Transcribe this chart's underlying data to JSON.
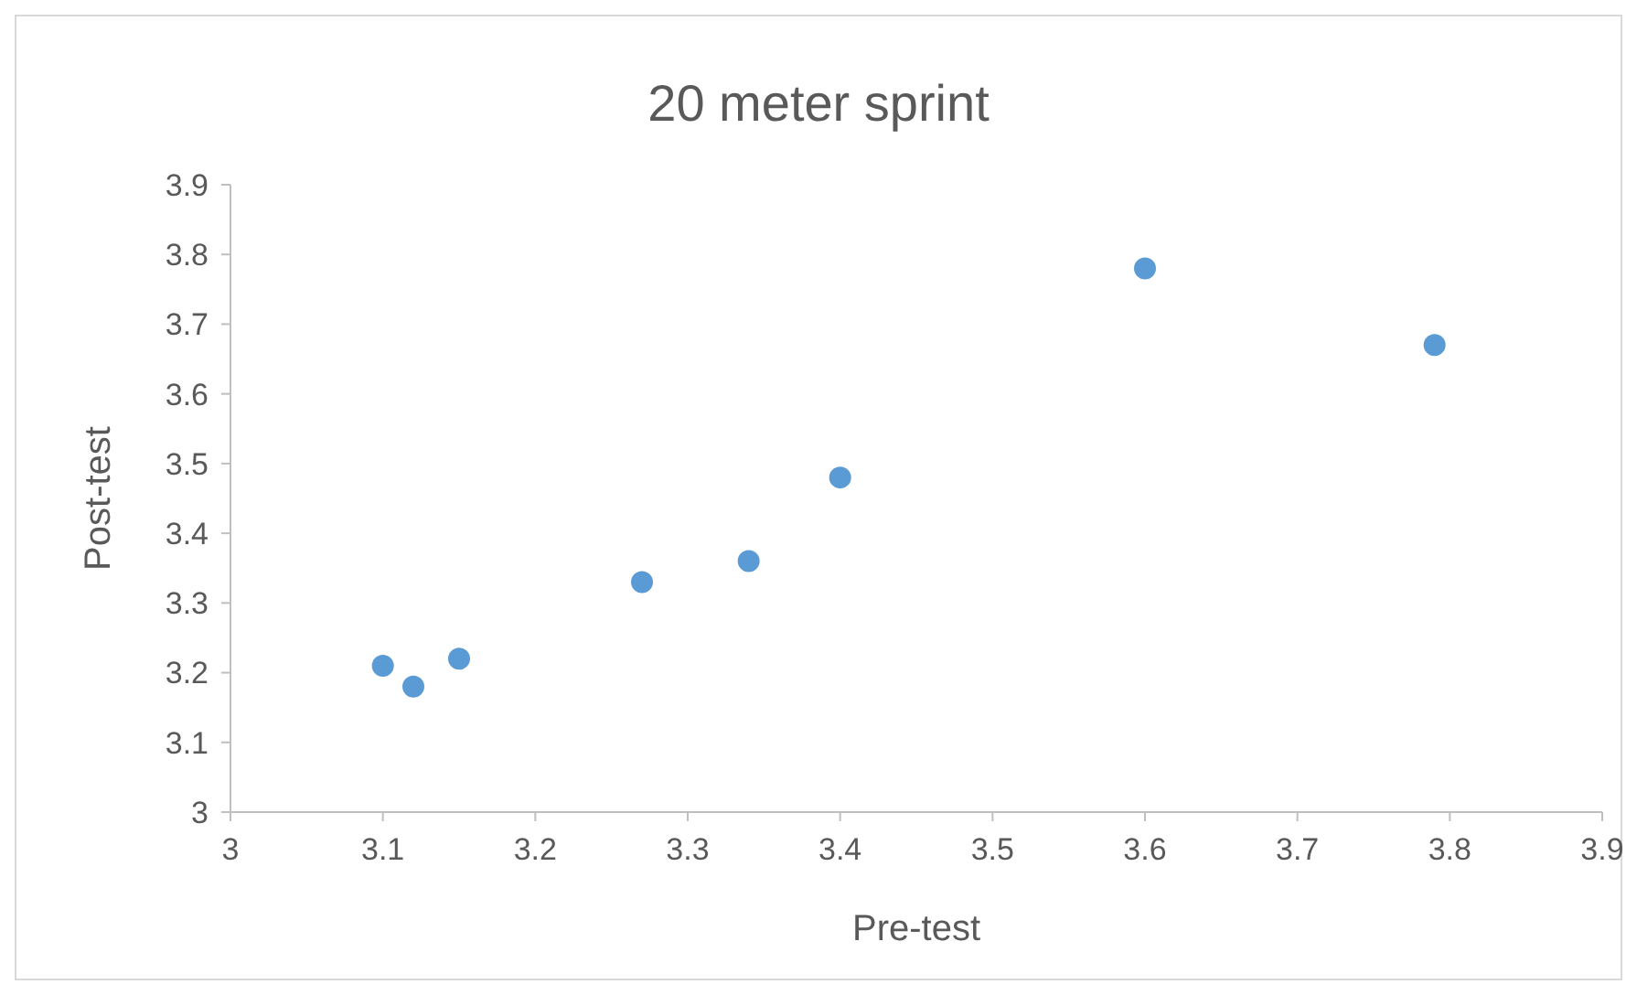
{
  "chart_data": {
    "type": "scatter",
    "title": "20 meter sprint",
    "xlabel": "Pre-test",
    "ylabel": "Post-test",
    "x": [
      3.1,
      3.12,
      3.15,
      3.27,
      3.34,
      3.4,
      3.6,
      3.79
    ],
    "series": [
      {
        "color": "#5b9bd5",
        "values": [
          3.21,
          3.18,
          3.22,
          3.33,
          3.36,
          3.48,
          3.78,
          3.67
        ]
      }
    ],
    "xlim": [
      3,
      3.9
    ],
    "xticks": [
      3,
      3.1,
      3.2,
      3.3,
      3.4,
      3.5,
      3.6,
      3.7,
      3.8,
      3.9
    ],
    "ylim": [
      3,
      3.9
    ],
    "yticks": [
      3,
      3.1,
      3.2,
      3.3,
      3.4,
      3.5,
      3.6,
      3.7,
      3.8,
      3.9
    ],
    "grid": false,
    "marker": "circle"
  }
}
